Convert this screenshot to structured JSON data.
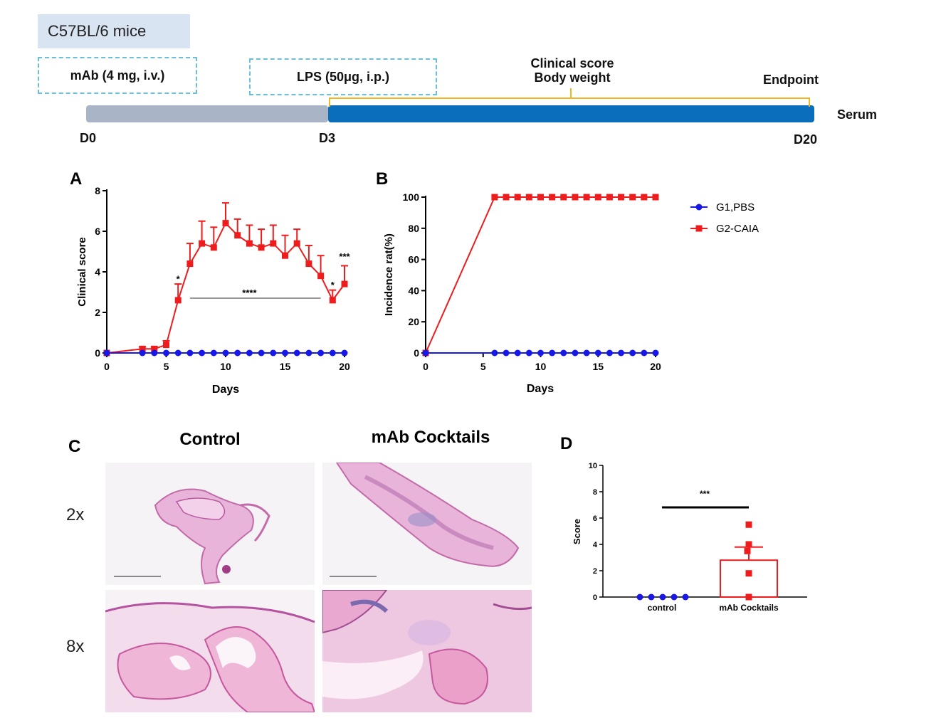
{
  "timeline": {
    "strain": "C57BL/6 mice",
    "mab_box": "mAb (4 mg,  i.v.)",
    "lps_box": "LPS (50μg,  i.p.)",
    "clinical_score": "Clinical score",
    "body_weight": "Body weight",
    "endpoint": "Endpoint",
    "serum": "Serum",
    "d0": "D0",
    "d3": "D3",
    "d20": "D20",
    "colors": {
      "pre_bar": "#a9b4c6",
      "post_bar": "#0a6ebd",
      "bracket": "#f0b81e",
      "dashed_box": "#6bbfd9"
    }
  },
  "legend": {
    "g1": "G1,PBS",
    "g2": "G2-CAIA",
    "colors": {
      "g1": "#1717e8",
      "g2": "#ee1c1c"
    }
  },
  "panel_labels": {
    "a": "A",
    "b": "B",
    "c": "C",
    "d": "D"
  },
  "panel_c": {
    "col_control": "Control",
    "col_mab": "mAb Cocktails",
    "row_2x": "2x",
    "row_8x": "8x"
  },
  "chart_data": [
    {
      "id": "A",
      "type": "line",
      "title": "",
      "xlabel": "Days",
      "ylabel": "Clinical score",
      "xlim": [
        0,
        20
      ],
      "ylim": [
        0,
        8
      ],
      "xticks": [
        0,
        5,
        10,
        15,
        20
      ],
      "yticks": [
        0,
        2,
        4,
        6,
        8
      ],
      "series": [
        {
          "name": "G1,PBS",
          "color": "#1717e8",
          "x": [
            0,
            3,
            4,
            5,
            6,
            7,
            8,
            9,
            10,
            11,
            12,
            13,
            14,
            15,
            16,
            17,
            18,
            19,
            20
          ],
          "y": [
            0,
            0,
            0,
            0,
            0,
            0,
            0,
            0,
            0,
            0,
            0,
            0,
            0,
            0,
            0,
            0,
            0,
            0,
            0
          ]
        },
        {
          "name": "G2-CAIA",
          "color": "#ee1c1c",
          "x": [
            0,
            3,
            4,
            5,
            6,
            7,
            8,
            9,
            10,
            11,
            12,
            13,
            14,
            15,
            16,
            17,
            18,
            19,
            20
          ],
          "y": [
            0,
            0.2,
            0.2,
            0.4,
            2.6,
            4.4,
            5.4,
            5.2,
            6.4,
            5.8,
            5.4,
            5.2,
            5.4,
            4.8,
            5.4,
            4.4,
            3.8,
            2.6,
            3.4
          ],
          "err": [
            0,
            0.1,
            0.1,
            0.2,
            0.8,
            1.0,
            1.1,
            1.0,
            1.0,
            0.8,
            0.9,
            0.9,
            0.9,
            1.0,
            0.7,
            0.9,
            1.0,
            0.5,
            0.9
          ]
        }
      ],
      "annotations": [
        {
          "text": "*",
          "x": 6,
          "y": 3.5
        },
        {
          "text": "****",
          "x": 12,
          "y": 2.8
        },
        {
          "text": "*",
          "x": 19,
          "y": 3.2
        },
        {
          "text": "***",
          "x": 20,
          "y": 4.6
        }
      ],
      "bracket": {
        "x1": 7,
        "x2": 18,
        "y": 2.7
      }
    },
    {
      "id": "B",
      "type": "line",
      "title": "",
      "xlabel": "Days",
      "ylabel": "Incidence rat(%)",
      "xlim": [
        0,
        20
      ],
      "ylim": [
        0,
        100
      ],
      "xticks": [
        0,
        5,
        10,
        15,
        20
      ],
      "yticks": [
        0,
        20,
        40,
        60,
        80,
        100
      ],
      "series": [
        {
          "name": "G1,PBS",
          "color": "#1717e8",
          "x": [
            0,
            6,
            7,
            8,
            9,
            10,
            11,
            12,
            13,
            14,
            15,
            16,
            17,
            18,
            19,
            20
          ],
          "y": [
            0,
            0,
            0,
            0,
            0,
            0,
            0,
            0,
            0,
            0,
            0,
            0,
            0,
            0,
            0,
            0
          ]
        },
        {
          "name": "G2-CAIA",
          "color": "#ee1c1c",
          "x": [
            0,
            6,
            7,
            8,
            9,
            10,
            11,
            12,
            13,
            14,
            15,
            16,
            17,
            18,
            19,
            20
          ],
          "y": [
            0,
            100,
            100,
            100,
            100,
            100,
            100,
            100,
            100,
            100,
            100,
            100,
            100,
            100,
            100,
            100
          ]
        }
      ]
    },
    {
      "id": "D",
      "type": "bar",
      "title": "",
      "xlabel": "",
      "ylabel": "Score",
      "ylim": [
        0,
        10
      ],
      "yticks": [
        0,
        2,
        4,
        6,
        8,
        10
      ],
      "categories": [
        "control",
        "mAb Cocktails"
      ],
      "values": [
        0,
        2.8
      ],
      "err": [
        0,
        1.0
      ],
      "points": [
        [
          0,
          0,
          0,
          0,
          0
        ],
        [
          5.5,
          4.0,
          3.5,
          1.8,
          0
        ]
      ],
      "significance": "***"
    }
  ]
}
